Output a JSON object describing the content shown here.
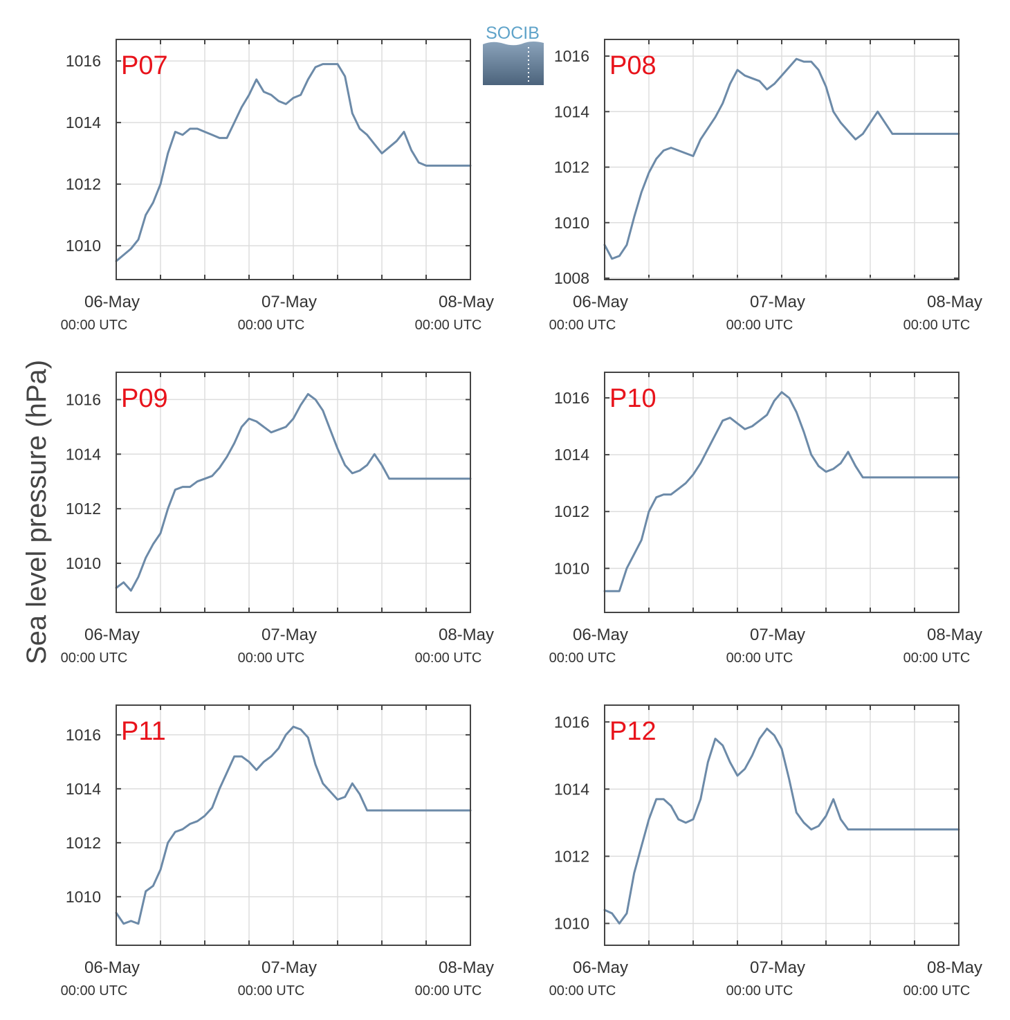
{
  "figure": {
    "ylabel": "Sea level pressure (hPa)",
    "logo_text": "SOCIB",
    "colors": {
      "line": "#6c8aa8",
      "label": "#e8131b",
      "grid": "#dddddd",
      "axis": "#444444"
    }
  },
  "chart_data": [
    {
      "type": "line",
      "label": "P07",
      "xlim": [
        0,
        48
      ],
      "ylim": [
        1008.9,
        1016.7
      ],
      "yticks": [
        1010,
        1012,
        1014,
        1016
      ],
      "xticks": [
        {
          "x": 0,
          "date": "06-May",
          "time": "00:00 UTC"
        },
        {
          "x": 24,
          "date": "07-May",
          "time": "00:00 UTC"
        },
        {
          "x": 48,
          "date": "08-May",
          "time": "00:00 UTC"
        }
      ],
      "x": [
        0,
        1,
        2,
        3,
        4,
        5,
        6,
        7,
        8,
        9,
        10,
        11,
        12,
        13,
        14,
        15,
        16,
        17,
        18,
        19,
        20,
        21,
        22,
        23,
        24,
        25,
        26,
        27,
        28,
        29,
        30,
        31,
        32,
        33,
        34,
        35,
        36,
        37,
        38,
        39,
        40,
        41,
        42,
        43,
        44,
        45,
        46,
        47,
        48
      ],
      "y": [
        1009.5,
        1009.7,
        1009.9,
        1010.2,
        1011.0,
        1011.4,
        1012.0,
        1013.0,
        1013.7,
        1013.6,
        1013.8,
        1013.8,
        1013.7,
        1013.6,
        1013.5,
        1013.5,
        1014.0,
        1014.5,
        1014.9,
        1015.4,
        1015.0,
        1014.9,
        1014.7,
        1014.6,
        1014.8,
        1014.9,
        1015.4,
        1015.8,
        1015.9,
        1015.9,
        1015.9,
        1015.5,
        1014.3,
        1013.8,
        1013.6,
        1013.3,
        1013.0,
        1013.2,
        1013.4,
        1013.7,
        1013.1,
        1012.7,
        1012.6,
        1012.6,
        1012.6,
        1012.6,
        1012.6,
        1012.6,
        1012.6
      ]
    },
    {
      "type": "line",
      "label": "P08",
      "xlim": [
        0,
        48
      ],
      "ylim": [
        1007.95,
        1016.6
      ],
      "yticks": [
        1008,
        1010,
        1012,
        1014,
        1016
      ],
      "xticks": [
        {
          "x": 0,
          "date": "06-May",
          "time": "00:00 UTC"
        },
        {
          "x": 24,
          "date": "07-May",
          "time": "00:00 UTC"
        },
        {
          "x": 48,
          "date": "08-May",
          "time": "00:00 UTC"
        }
      ],
      "x": [
        0,
        1,
        2,
        3,
        4,
        5,
        6,
        7,
        8,
        9,
        10,
        11,
        12,
        13,
        14,
        15,
        16,
        17,
        18,
        19,
        20,
        21,
        22,
        23,
        24,
        25,
        26,
        27,
        28,
        29,
        30,
        31,
        32,
        33,
        34,
        35,
        36,
        37,
        38,
        39,
        40,
        41,
        42,
        43,
        44,
        45,
        46,
        47,
        48
      ],
      "y": [
        1009.2,
        1008.7,
        1008.8,
        1009.2,
        1010.2,
        1011.1,
        1011.8,
        1012.3,
        1012.6,
        1012.7,
        1012.6,
        1012.5,
        1012.4,
        1013.0,
        1013.4,
        1013.8,
        1014.3,
        1015.0,
        1015.5,
        1015.3,
        1015.2,
        1015.1,
        1014.8,
        1015.0,
        1015.3,
        1015.6,
        1015.9,
        1015.8,
        1015.8,
        1015.5,
        1014.9,
        1014.0,
        1013.6,
        1013.3,
        1013.0,
        1013.2,
        1013.6,
        1014.0,
        1013.6,
        1013.2,
        1013.2,
        1013.2,
        1013.2,
        1013.2,
        1013.2,
        1013.2,
        1013.2,
        1013.2,
        1013.2
      ]
    },
    {
      "type": "line",
      "label": "P09",
      "xlim": [
        0,
        48
      ],
      "ylim": [
        1008.2,
        1017.0
      ],
      "yticks": [
        1010,
        1012,
        1014,
        1016
      ],
      "xticks": [
        {
          "x": 0,
          "date": "06-May",
          "time": "00:00 UTC"
        },
        {
          "x": 24,
          "date": "07-May",
          "time": "00:00 UTC"
        },
        {
          "x": 48,
          "date": "08-May",
          "time": "00:00 UTC"
        }
      ],
      "x": [
        0,
        1,
        2,
        3,
        4,
        5,
        6,
        7,
        8,
        9,
        10,
        11,
        12,
        13,
        14,
        15,
        16,
        17,
        18,
        19,
        20,
        21,
        22,
        23,
        24,
        25,
        26,
        27,
        28,
        29,
        30,
        31,
        32,
        33,
        34,
        35,
        36,
        37,
        38,
        39,
        40,
        41,
        42,
        43,
        44,
        45,
        46,
        47,
        48
      ],
      "y": [
        1009.1,
        1009.3,
        1009.0,
        1009.5,
        1010.2,
        1010.7,
        1011.1,
        1012.0,
        1012.7,
        1012.8,
        1012.8,
        1013.0,
        1013.1,
        1013.2,
        1013.5,
        1013.9,
        1014.4,
        1015.0,
        1015.3,
        1015.2,
        1015.0,
        1014.8,
        1014.9,
        1015.0,
        1015.3,
        1015.8,
        1016.2,
        1016.0,
        1015.6,
        1014.9,
        1014.2,
        1013.6,
        1013.3,
        1013.4,
        1013.6,
        1014.0,
        1013.6,
        1013.1,
        1013.1,
        1013.1,
        1013.1,
        1013.1,
        1013.1,
        1013.1,
        1013.1,
        1013.1,
        1013.1,
        1013.1,
        1013.1
      ]
    },
    {
      "type": "line",
      "label": "P10",
      "xlim": [
        0,
        48
      ],
      "ylim": [
        1008.45,
        1016.9
      ],
      "yticks": [
        1010,
        1012,
        1014,
        1016
      ],
      "xticks": [
        {
          "x": 0,
          "date": "06-May",
          "time": "00:00 UTC"
        },
        {
          "x": 24,
          "date": "07-May",
          "time": "00:00 UTC"
        },
        {
          "x": 48,
          "date": "08-May",
          "time": "00:00 UTC"
        }
      ],
      "x": [
        0,
        1,
        2,
        3,
        4,
        5,
        6,
        7,
        8,
        9,
        10,
        11,
        12,
        13,
        14,
        15,
        16,
        17,
        18,
        19,
        20,
        21,
        22,
        23,
        24,
        25,
        26,
        27,
        28,
        29,
        30,
        31,
        32,
        33,
        34,
        35,
        36,
        37,
        38,
        39,
        40,
        41,
        42,
        43,
        44,
        45,
        46,
        47,
        48
      ],
      "y": [
        1009.2,
        1009.2,
        1009.2,
        1010.0,
        1010.5,
        1011.0,
        1012.0,
        1012.5,
        1012.6,
        1012.6,
        1012.8,
        1013.0,
        1013.3,
        1013.7,
        1014.2,
        1014.7,
        1015.2,
        1015.3,
        1015.1,
        1014.9,
        1015.0,
        1015.2,
        1015.4,
        1015.9,
        1016.2,
        1016.0,
        1015.5,
        1014.8,
        1014.0,
        1013.6,
        1013.4,
        1013.5,
        1013.7,
        1014.1,
        1013.6,
        1013.2,
        1013.2,
        1013.2,
        1013.2,
        1013.2,
        1013.2,
        1013.2,
        1013.2,
        1013.2,
        1013.2,
        1013.2,
        1013.2,
        1013.2,
        1013.2
      ]
    },
    {
      "type": "line",
      "label": "P11",
      "xlim": [
        0,
        48
      ],
      "ylim": [
        1008.2,
        1017.1
      ],
      "yticks": [
        1010,
        1012,
        1014,
        1016
      ],
      "xticks": [
        {
          "x": 0,
          "date": "06-May",
          "time": "00:00 UTC"
        },
        {
          "x": 24,
          "date": "07-May",
          "time": "00:00 UTC"
        },
        {
          "x": 48,
          "date": "08-May",
          "time": "00:00 UTC"
        }
      ],
      "x": [
        0,
        1,
        2,
        3,
        4,
        5,
        6,
        7,
        8,
        9,
        10,
        11,
        12,
        13,
        14,
        15,
        16,
        17,
        18,
        19,
        20,
        21,
        22,
        23,
        24,
        25,
        26,
        27,
        28,
        29,
        30,
        31,
        32,
        33,
        34,
        35,
        36,
        37,
        38,
        39,
        40,
        41,
        42,
        43,
        44,
        45,
        46,
        47,
        48
      ],
      "y": [
        1009.4,
        1009.0,
        1009.1,
        1009.0,
        1010.2,
        1010.4,
        1011.0,
        1012.0,
        1012.4,
        1012.5,
        1012.7,
        1012.8,
        1013.0,
        1013.3,
        1014.0,
        1014.6,
        1015.2,
        1015.2,
        1015.0,
        1014.7,
        1015.0,
        1015.2,
        1015.5,
        1016.0,
        1016.3,
        1016.2,
        1015.9,
        1014.9,
        1014.2,
        1013.9,
        1013.6,
        1013.7,
        1014.2,
        1013.8,
        1013.2,
        1013.2,
        1013.2,
        1013.2,
        1013.2,
        1013.2,
        1013.2,
        1013.2,
        1013.2,
        1013.2,
        1013.2,
        1013.2,
        1013.2,
        1013.2,
        1013.2
      ]
    },
    {
      "type": "line",
      "label": "P12",
      "xlim": [
        0,
        48
      ],
      "ylim": [
        1009.35,
        1016.5
      ],
      "yticks": [
        1010,
        1012,
        1014,
        1016
      ],
      "xticks": [
        {
          "x": 0,
          "date": "06-May",
          "time": "00:00 UTC"
        },
        {
          "x": 24,
          "date": "07-May",
          "time": "00:00 UTC"
        },
        {
          "x": 48,
          "date": "08-May",
          "time": "00:00 UTC"
        }
      ],
      "x": [
        0,
        1,
        2,
        3,
        4,
        5,
        6,
        7,
        8,
        9,
        10,
        11,
        12,
        13,
        14,
        15,
        16,
        17,
        18,
        19,
        20,
        21,
        22,
        23,
        24,
        25,
        26,
        27,
        28,
        29,
        30,
        31,
        32,
        33,
        34,
        35,
        36,
        37,
        38,
        39,
        40,
        41,
        42,
        43,
        44,
        45,
        46,
        47,
        48
      ],
      "y": [
        1010.4,
        1010.3,
        1010.0,
        1010.3,
        1011.5,
        1012.3,
        1013.1,
        1013.7,
        1013.7,
        1013.5,
        1013.1,
        1013.0,
        1013.1,
        1013.7,
        1014.8,
        1015.5,
        1015.3,
        1014.8,
        1014.4,
        1014.6,
        1015.0,
        1015.5,
        1015.8,
        1015.6,
        1015.2,
        1014.3,
        1013.3,
        1013.0,
        1012.8,
        1012.9,
        1013.2,
        1013.7,
        1013.1,
        1012.8,
        1012.8,
        1012.8,
        1012.8,
        1012.8,
        1012.8,
        1012.8,
        1012.8,
        1012.8,
        1012.8,
        1012.8,
        1012.8,
        1012.8,
        1012.8,
        1012.8,
        1012.8
      ]
    }
  ]
}
